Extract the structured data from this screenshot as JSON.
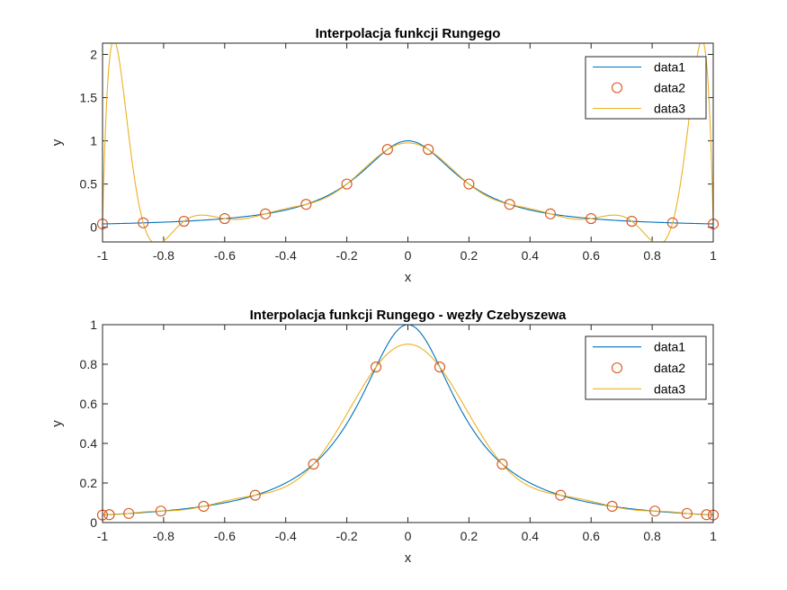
{
  "chart_data": [
    {
      "type": "line",
      "title": "Interpolacja funkcji Rungego",
      "xlabel": "x",
      "ylabel": "y",
      "xlim": [
        -1,
        1
      ],
      "ylim": [
        -0.17,
        2.13
      ],
      "xticks": [
        -1,
        -0.8,
        -0.6,
        -0.4,
        -0.2,
        0,
        0.2,
        0.4,
        0.6,
        0.8,
        1
      ],
      "xtick_labels": [
        "-1",
        "-0.8",
        "-0.6",
        "-0.4",
        "-0.2",
        "0",
        "0.2",
        "0.4",
        "0.6",
        "0.8",
        "1"
      ],
      "yticks": [
        0,
        0.5,
        1,
        1.5,
        2
      ],
      "ytick_labels": [
        "0",
        "0.5",
        "1",
        "1.5",
        "2"
      ],
      "legend_position": "top-right",
      "series": [
        {
          "name": "data1",
          "kind": "function",
          "color": "#0072BD",
          "x_range": [
            -1,
            1
          ]
        },
        {
          "name": "data2",
          "kind": "markers",
          "marker": "circle",
          "color": "#D95319",
          "x": [
            -1,
            -0.8667,
            -0.7333,
            -0.6,
            -0.4667,
            -0.3333,
            -0.2,
            -0.0667,
            0.0667,
            0.2,
            0.3333,
            0.4667,
            0.6,
            0.7333,
            0.8667,
            1
          ],
          "y": [
            0.038,
            0.051,
            0.069,
            0.1,
            0.155,
            0.265,
            0.5,
            0.9,
            0.9,
            0.5,
            0.265,
            0.155,
            0.1,
            0.069,
            0.051,
            0.038
          ]
        },
        {
          "name": "data3",
          "kind": "interpolant",
          "color": "#EDB120",
          "x_range": [
            -1,
            1
          ]
        }
      ]
    },
    {
      "type": "line",
      "title": "Interpolacja funkcji Rungego - węzły Czebyszewa",
      "xlabel": "x",
      "ylabel": "y",
      "xlim": [
        -1,
        1
      ],
      "ylim": [
        0,
        1
      ],
      "xticks": [
        -1,
        -0.8,
        -0.6,
        -0.4,
        -0.2,
        0,
        0.2,
        0.4,
        0.6,
        0.8,
        1
      ],
      "xtick_labels": [
        "-1",
        "-0.8",
        "-0.6",
        "-0.4",
        "-0.2",
        "0",
        "0.2",
        "0.4",
        "0.6",
        "0.8",
        "1"
      ],
      "yticks": [
        0,
        0.2,
        0.4,
        0.6,
        0.8,
        1
      ],
      "ytick_labels": [
        "0",
        "0.2",
        "0.4",
        "0.6",
        "0.8",
        "1"
      ],
      "legend_position": "top-right",
      "series": [
        {
          "name": "data1",
          "kind": "function",
          "color": "#0072BD",
          "x_range": [
            -1,
            1
          ]
        },
        {
          "name": "data2",
          "kind": "markers",
          "marker": "circle",
          "color": "#D95319",
          "x": [
            -1,
            -0.978,
            -0.914,
            -0.809,
            -0.669,
            -0.5,
            -0.309,
            -0.1045,
            0.1045,
            0.309,
            0.5,
            0.669,
            0.809,
            0.914,
            0.978,
            1
          ],
          "y": [
            0.038,
            0.04,
            0.046,
            0.058,
            0.082,
            0.138,
            0.295,
            0.786,
            0.786,
            0.295,
            0.138,
            0.082,
            0.058,
            0.046,
            0.04,
            0.038
          ]
        },
        {
          "name": "data3",
          "kind": "interpolant",
          "color": "#EDB120",
          "x_range": [
            -1,
            1
          ]
        }
      ]
    }
  ]
}
